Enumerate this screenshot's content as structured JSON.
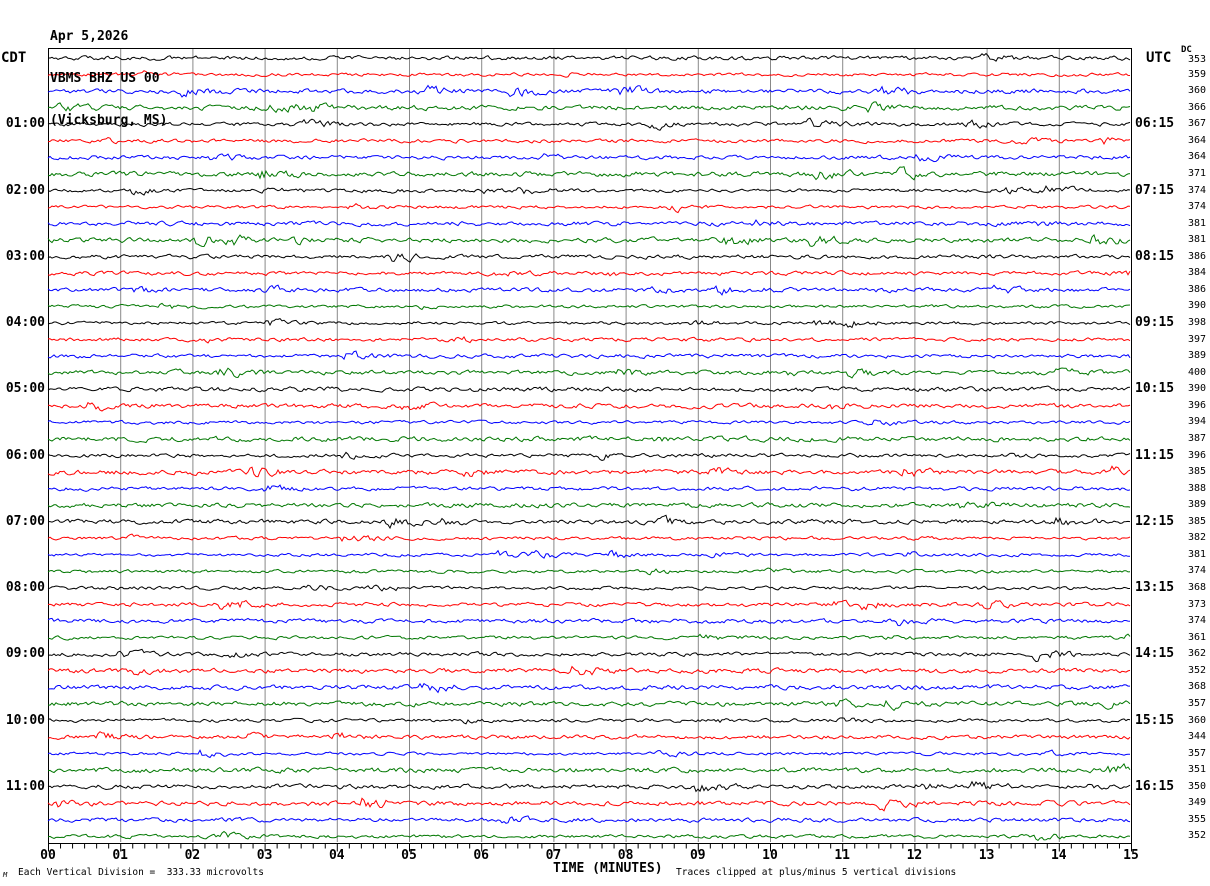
{
  "title": {
    "date": "Apr 5,2026",
    "station": "VBMS BHZ US 00",
    "location": "(Vicksburg, MS)"
  },
  "axes": {
    "left_tz": "CDT",
    "right_tz": "UTC",
    "dc_header": "DC",
    "x_label": "TIME (MINUTES)",
    "x_ticks": [
      "00",
      "01",
      "02",
      "03",
      "04",
      "05",
      "06",
      "07",
      "08",
      "09",
      "10",
      "11",
      "12",
      "13",
      "14",
      "15"
    ]
  },
  "footer": {
    "scale_note": "Each Vertical Division =  333.33 microvolts",
    "clip_note": "Traces clipped at plus/minus 5 vertical divisions",
    "corner_mark": "M"
  },
  "colors": {
    "black": "#000000",
    "red": "#ff0000",
    "blue": "#0000ff",
    "green": "#007700",
    "grid": "#888888",
    "border": "#000000"
  },
  "trace_color_cycle": [
    "black",
    "red",
    "blue",
    "green"
  ],
  "rows": [
    {
      "dc": "353",
      "left": "",
      "right": ""
    },
    {
      "dc": "359",
      "left": "",
      "right": ""
    },
    {
      "dc": "360",
      "left": "",
      "right": ""
    },
    {
      "dc": "366",
      "left": "",
      "right": ""
    },
    {
      "dc": "367",
      "left": "01:00",
      "right": "06:15"
    },
    {
      "dc": "364",
      "left": "",
      "right": ""
    },
    {
      "dc": "364",
      "left": "",
      "right": ""
    },
    {
      "dc": "371",
      "left": "",
      "right": ""
    },
    {
      "dc": "374",
      "left": "02:00",
      "right": "07:15"
    },
    {
      "dc": "374",
      "left": "",
      "right": ""
    },
    {
      "dc": "381",
      "left": "",
      "right": ""
    },
    {
      "dc": "381",
      "left": "",
      "right": ""
    },
    {
      "dc": "386",
      "left": "03:00",
      "right": "08:15"
    },
    {
      "dc": "384",
      "left": "",
      "right": ""
    },
    {
      "dc": "386",
      "left": "",
      "right": ""
    },
    {
      "dc": "390",
      "left": "",
      "right": ""
    },
    {
      "dc": "398",
      "left": "04:00",
      "right": "09:15"
    },
    {
      "dc": "397",
      "left": "",
      "right": ""
    },
    {
      "dc": "389",
      "left": "",
      "right": ""
    },
    {
      "dc": "400",
      "left": "",
      "right": ""
    },
    {
      "dc": "390",
      "left": "05:00",
      "right": "10:15"
    },
    {
      "dc": "396",
      "left": "",
      "right": ""
    },
    {
      "dc": "394",
      "left": "",
      "right": ""
    },
    {
      "dc": "387",
      "left": "",
      "right": ""
    },
    {
      "dc": "396",
      "left": "06:00",
      "right": "11:15"
    },
    {
      "dc": "385",
      "left": "",
      "right": ""
    },
    {
      "dc": "388",
      "left": "",
      "right": ""
    },
    {
      "dc": "389",
      "left": "",
      "right": ""
    },
    {
      "dc": "385",
      "left": "07:00",
      "right": "12:15"
    },
    {
      "dc": "382",
      "left": "",
      "right": ""
    },
    {
      "dc": "381",
      "left": "",
      "right": ""
    },
    {
      "dc": "374",
      "left": "",
      "right": ""
    },
    {
      "dc": "368",
      "left": "08:00",
      "right": "13:15"
    },
    {
      "dc": "373",
      "left": "",
      "right": ""
    },
    {
      "dc": "374",
      "left": "",
      "right": ""
    },
    {
      "dc": "361",
      "left": "",
      "right": ""
    },
    {
      "dc": "362",
      "left": "09:00",
      "right": "14:15"
    },
    {
      "dc": "352",
      "left": "",
      "right": ""
    },
    {
      "dc": "368",
      "left": "",
      "right": ""
    },
    {
      "dc": "357",
      "left": "",
      "right": ""
    },
    {
      "dc": "360",
      "left": "10:00",
      "right": "15:15"
    },
    {
      "dc": "344",
      "left": "",
      "right": ""
    },
    {
      "dc": "357",
      "left": "",
      "right": ""
    },
    {
      "dc": "351",
      "left": "",
      "right": ""
    },
    {
      "dc": "350",
      "left": "11:00",
      "right": "16:15"
    },
    {
      "dc": "349",
      "left": "",
      "right": ""
    },
    {
      "dc": "355",
      "left": "",
      "right": ""
    },
    {
      "dc": "352",
      "left": "",
      "right": ""
    }
  ],
  "chart_data": {
    "type": "line",
    "subtype": "helicorder seismogram: 48 stacked 15-minute traces, colors cycling black/red/blue/green",
    "title": "VBMS BHZ US 00 (Vicksburg, MS) Apr 5,2026",
    "xlabel": "TIME (MINUTES)",
    "x_range": [
      0,
      15
    ],
    "x_tick_labels": [
      "00",
      "01",
      "02",
      "03",
      "04",
      "05",
      "06",
      "07",
      "08",
      "09",
      "10",
      "11",
      "12",
      "13",
      "14",
      "15"
    ],
    "minor_ticks_per_minute": 5,
    "num_traces": 48,
    "left_axis_cdt_hours": [
      "01:00",
      "02:00",
      "03:00",
      "04:00",
      "05:00",
      "06:00",
      "07:00",
      "08:00",
      "09:00",
      "10:00",
      "11:00"
    ],
    "right_axis_utc_times": [
      "06:15",
      "07:15",
      "08:15",
      "09:15",
      "10:15",
      "11:15",
      "12:15",
      "13:15",
      "14:15",
      "15:15",
      "16:15"
    ],
    "trace_colors_cycle": [
      "#000000",
      "#ff0000",
      "#0000ff",
      "#007700"
    ],
    "dc_offsets": [
      353,
      359,
      360,
      366,
      367,
      364,
      364,
      371,
      374,
      374,
      381,
      381,
      386,
      384,
      386,
      390,
      398,
      397,
      389,
      400,
      390,
      396,
      394,
      387,
      396,
      385,
      388,
      389,
      385,
      382,
      381,
      374,
      368,
      373,
      374,
      361,
      362,
      352,
      368,
      357,
      360,
      344,
      357,
      351,
      350,
      349,
      355,
      352
    ],
    "amplitude_scale": "Each Vertical Division = 333.33 microvolts",
    "clipping": "Traces clipped at plus/minus 5 vertical divisions",
    "grid": "vertical gray gridline at each minute"
  }
}
